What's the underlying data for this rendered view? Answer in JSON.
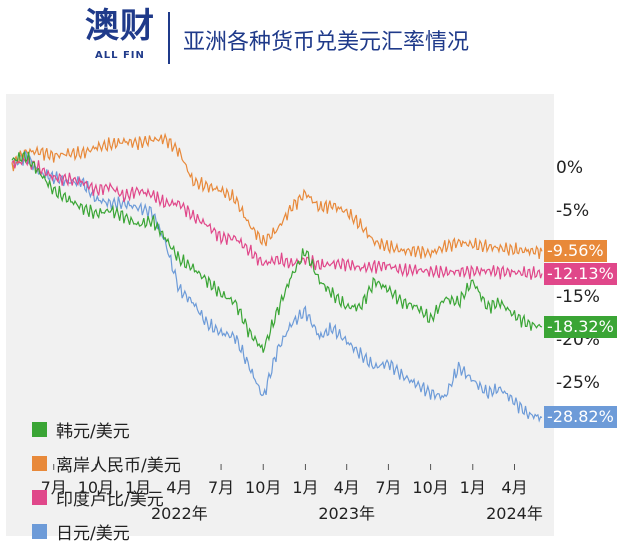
{
  "header": {
    "logo_main": "澳财",
    "logo_sub": "ALL FIN",
    "title": "亚洲各种货币兑美元汇率情况"
  },
  "chart_data": {
    "type": "line",
    "title": "亚洲各种货币兑美元汇率情况",
    "xlabel": "",
    "ylabel": "",
    "x_range": [
      "2021-04-01",
      "2024-05-31"
    ],
    "ylim": [
      -34,
      8
    ],
    "y_ticks": [
      {
        "value": 0,
        "label": "0%"
      },
      {
        "value": -5,
        "label": "-5%"
      },
      {
        "value": -15,
        "label": "-15%"
      },
      {
        "value": -20,
        "label": "-20%"
      },
      {
        "value": -25,
        "label": "-25%"
      }
    ],
    "x_ticks": [
      {
        "date": "2021-07-01",
        "label": "7月"
      },
      {
        "date": "2021-10-01",
        "label": "10月"
      },
      {
        "date": "2022-01-01",
        "label": "1月"
      },
      {
        "date": "2022-04-01",
        "label": "4月"
      },
      {
        "date": "2022-07-01",
        "label": "7月"
      },
      {
        "date": "2022-10-01",
        "label": "10月"
      },
      {
        "date": "2023-01-01",
        "label": "1月"
      },
      {
        "date": "2023-04-01",
        "label": "4月"
      },
      {
        "date": "2023-07-01",
        "label": "7月"
      },
      {
        "date": "2023-10-01",
        "label": "10月"
      },
      {
        "date": "2024-01-01",
        "label": "1月"
      },
      {
        "date": "2024-04-01",
        "label": "4月"
      }
    ],
    "year_labels": [
      {
        "date": "2022-04-01",
        "label": "2022年"
      },
      {
        "date": "2023-04-01",
        "label": "2023年"
      },
      {
        "date": "2024-04-01",
        "label": "2024年"
      }
    ],
    "grid": false,
    "legend_position": "bottom-left",
    "series": [
      {
        "name": "韩元/美元",
        "color": "#3aa535",
        "end_label": "-18.32%",
        "points": [
          [
            "2021-04-01",
            1.0
          ],
          [
            "2021-05-01",
            1.5
          ],
          [
            "2021-06-01",
            -0.5
          ],
          [
            "2021-07-01",
            -2.5
          ],
          [
            "2021-08-01",
            -3.5
          ],
          [
            "2021-09-01",
            -4.5
          ],
          [
            "2021-10-01",
            -5.2
          ],
          [
            "2021-11-01",
            -4.8
          ],
          [
            "2021-12-01",
            -5.5
          ],
          [
            "2022-01-01",
            -6.5
          ],
          [
            "2022-02-01",
            -6.0
          ],
          [
            "2022-03-01",
            -8.0
          ],
          [
            "2022-04-01",
            -10.5
          ],
          [
            "2022-05-01",
            -11.5
          ],
          [
            "2022-06-01",
            -13.0
          ],
          [
            "2022-07-01",
            -14.5
          ],
          [
            "2022-08-01",
            -15.5
          ],
          [
            "2022-09-01",
            -19.0
          ],
          [
            "2022-10-01",
            -21.0
          ],
          [
            "2022-11-01",
            -16.5
          ],
          [
            "2022-12-01",
            -12.5
          ],
          [
            "2023-01-01",
            -9.5
          ],
          [
            "2023-02-01",
            -13.0
          ],
          [
            "2023-03-01",
            -14.5
          ],
          [
            "2023-04-01",
            -16.0
          ],
          [
            "2023-05-01",
            -16.0
          ],
          [
            "2023-06-01",
            -13.0
          ],
          [
            "2023-07-01",
            -14.0
          ],
          [
            "2023-08-01",
            -15.5
          ],
          [
            "2023-09-01",
            -16.0
          ],
          [
            "2023-10-01",
            -17.5
          ],
          [
            "2023-11-01",
            -15.0
          ],
          [
            "2023-12-01",
            -15.5
          ],
          [
            "2024-01-01",
            -13.0
          ],
          [
            "2024-02-01",
            -16.0
          ],
          [
            "2024-03-01",
            -15.5
          ],
          [
            "2024-04-01",
            -17.0
          ],
          [
            "2024-05-01",
            -18.0
          ],
          [
            "2024-05-31",
            -18.32
          ]
        ]
      },
      {
        "name": "离岸人民币/美元",
        "color": "#e8893a",
        "end_label": "-9.56%",
        "points": [
          [
            "2021-04-01",
            0.5
          ],
          [
            "2021-05-01",
            2.0
          ],
          [
            "2021-06-01",
            2.0
          ],
          [
            "2021-07-01",
            1.5
          ],
          [
            "2021-08-01",
            1.8
          ],
          [
            "2021-09-01",
            1.8
          ],
          [
            "2021-10-01",
            2.5
          ],
          [
            "2021-11-01",
            2.8
          ],
          [
            "2021-12-01",
            3.2
          ],
          [
            "2022-01-01",
            3.0
          ],
          [
            "2022-02-01",
            3.4
          ],
          [
            "2022-03-01",
            3.5
          ],
          [
            "2022-04-01",
            2.0
          ],
          [
            "2022-05-01",
            -1.5
          ],
          [
            "2022-06-01",
            -2.0
          ],
          [
            "2022-07-01",
            -2.5
          ],
          [
            "2022-08-01",
            -3.5
          ],
          [
            "2022-09-01",
            -6.5
          ],
          [
            "2022-10-01",
            -8.5
          ],
          [
            "2022-11-01",
            -7.0
          ],
          [
            "2022-12-01",
            -4.5
          ],
          [
            "2023-01-01",
            -2.8
          ],
          [
            "2023-02-01",
            -4.5
          ],
          [
            "2023-03-01",
            -4.2
          ],
          [
            "2023-04-01",
            -5.0
          ],
          [
            "2023-05-01",
            -6.5
          ],
          [
            "2023-06-01",
            -8.5
          ],
          [
            "2023-07-01",
            -9.0
          ],
          [
            "2023-08-01",
            -9.5
          ],
          [
            "2023-09-01",
            -9.5
          ],
          [
            "2023-10-01",
            -9.8
          ],
          [
            "2023-11-01",
            -9.0
          ],
          [
            "2023-12-01",
            -8.5
          ],
          [
            "2024-01-01",
            -8.8
          ],
          [
            "2024-02-01",
            -9.0
          ],
          [
            "2024-03-01",
            -9.2
          ],
          [
            "2024-04-01",
            -9.4
          ],
          [
            "2024-05-01",
            -9.5
          ],
          [
            "2024-05-31",
            -9.56
          ]
        ]
      },
      {
        "name": "印度卢比/美元",
        "color": "#e0478a",
        "end_label": "-12.13%",
        "points": [
          [
            "2021-04-01",
            0.5
          ],
          [
            "2021-05-01",
            1.0
          ],
          [
            "2021-06-01",
            0.0
          ],
          [
            "2021-07-01",
            -1.0
          ],
          [
            "2021-08-01",
            -1.2
          ],
          [
            "2021-09-01",
            -1.5
          ],
          [
            "2021-10-01",
            -2.5
          ],
          [
            "2021-11-01",
            -2.0
          ],
          [
            "2021-12-01",
            -3.2
          ],
          [
            "2022-01-01",
            -2.5
          ],
          [
            "2022-02-01",
            -3.0
          ],
          [
            "2022-03-01",
            -4.0
          ],
          [
            "2022-04-01",
            -4.0
          ],
          [
            "2022-05-01",
            -5.5
          ],
          [
            "2022-06-01",
            -6.5
          ],
          [
            "2022-07-01",
            -8.0
          ],
          [
            "2022-08-01",
            -8.0
          ],
          [
            "2022-09-01",
            -9.5
          ],
          [
            "2022-10-01",
            -11.0
          ],
          [
            "2022-11-01",
            -10.5
          ],
          [
            "2022-12-01",
            -11.0
          ],
          [
            "2023-01-01",
            -10.5
          ],
          [
            "2023-02-01",
            -11.2
          ],
          [
            "2023-03-01",
            -11.0
          ],
          [
            "2023-04-01",
            -11.0
          ],
          [
            "2023-05-01",
            -11.5
          ],
          [
            "2023-06-01",
            -11.3
          ],
          [
            "2023-07-01",
            -11.2
          ],
          [
            "2023-08-01",
            -11.8
          ],
          [
            "2023-09-01",
            -11.7
          ],
          [
            "2023-10-01",
            -11.9
          ],
          [
            "2023-11-01",
            -12.0
          ],
          [
            "2023-12-01",
            -11.9
          ],
          [
            "2024-01-01",
            -11.9
          ],
          [
            "2024-02-01",
            -11.8
          ],
          [
            "2024-03-01",
            -11.9
          ],
          [
            "2024-04-01",
            -12.0
          ],
          [
            "2024-05-01",
            -12.1
          ],
          [
            "2024-05-31",
            -12.13
          ]
        ]
      },
      {
        "name": "日元/美元",
        "color": "#6d9bd8",
        "end_label": "-28.82%",
        "points": [
          [
            "2021-04-01",
            0.5
          ],
          [
            "2021-05-01",
            1.5
          ],
          [
            "2021-06-01",
            -0.5
          ],
          [
            "2021-07-01",
            -1.0
          ],
          [
            "2021-08-01",
            -1.5
          ],
          [
            "2021-09-01",
            -1.5
          ],
          [
            "2021-10-01",
            -3.5
          ],
          [
            "2021-11-01",
            -4.0
          ],
          [
            "2021-12-01",
            -4.0
          ],
          [
            "2022-01-01",
            -4.5
          ],
          [
            "2022-02-01",
            -5.0
          ],
          [
            "2022-03-01",
            -8.5
          ],
          [
            "2022-04-01",
            -14.0
          ],
          [
            "2022-05-01",
            -15.5
          ],
          [
            "2022-06-01",
            -18.0
          ],
          [
            "2022-07-01",
            -19.0
          ],
          [
            "2022-08-01",
            -19.5
          ],
          [
            "2022-09-01",
            -23.0
          ],
          [
            "2022-10-01",
            -26.5
          ],
          [
            "2022-11-01",
            -21.0
          ],
          [
            "2022-12-01",
            -18.0
          ],
          [
            "2023-01-01",
            -16.5
          ],
          [
            "2023-02-01",
            -19.5
          ],
          [
            "2023-03-01",
            -18.5
          ],
          [
            "2023-04-01",
            -20.0
          ],
          [
            "2023-05-01",
            -21.5
          ],
          [
            "2023-06-01",
            -23.0
          ],
          [
            "2023-07-01",
            -22.5
          ],
          [
            "2023-08-01",
            -24.0
          ],
          [
            "2023-09-01",
            -25.0
          ],
          [
            "2023-10-01",
            -26.0
          ],
          [
            "2023-11-01",
            -26.5
          ],
          [
            "2023-12-01",
            -23.0
          ],
          [
            "2024-01-01",
            -24.5
          ],
          [
            "2024-02-01",
            -26.0
          ],
          [
            "2024-03-01",
            -25.5
          ],
          [
            "2024-04-01",
            -27.0
          ],
          [
            "2024-05-01",
            -28.5
          ],
          [
            "2024-05-31",
            -28.82
          ]
        ]
      }
    ]
  }
}
